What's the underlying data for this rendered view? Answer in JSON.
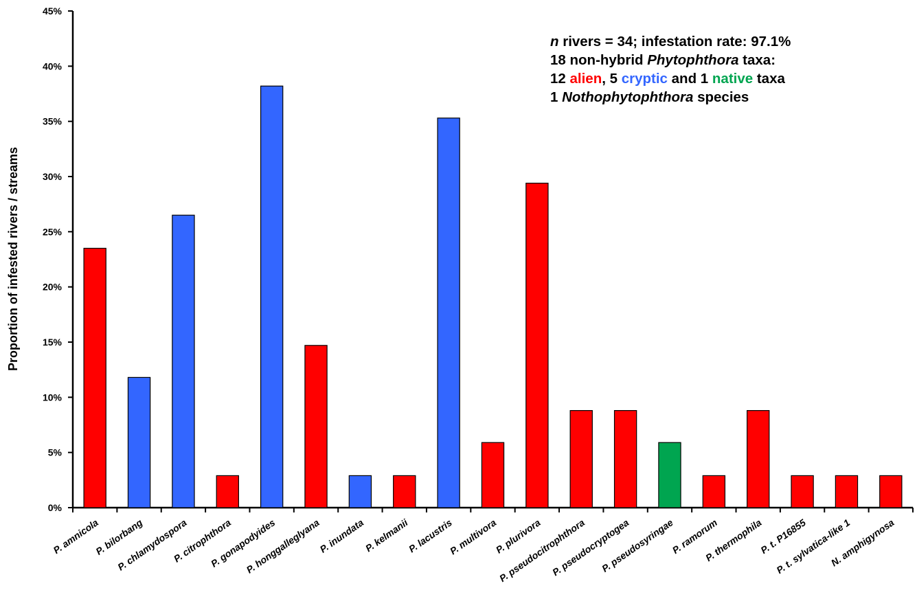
{
  "chart_data": {
    "type": "bar",
    "ylabel": "Proportion of  infested rivers / streams",
    "ylim": [
      0,
      45
    ],
    "y_ticks": [
      "0%",
      "5%",
      "10%",
      "15%",
      "20%",
      "25%",
      "30%",
      "35%",
      "40%",
      "45%"
    ],
    "y_tick_values": [
      0,
      5,
      10,
      15,
      20,
      25,
      30,
      35,
      40,
      45
    ],
    "grid": false,
    "categories": [
      "P. amnicola",
      "P. bilorbang",
      "P. chlamydospora",
      "P. citrophthora",
      "P. gonapodyides",
      "P. honggalleglyana",
      "P. inundata",
      "P. kelmanii",
      "P. lacustris",
      "P. multivora",
      "P. plurivora",
      "P. pseudocitrophthora",
      "P. pseudocryptogea",
      "P. pseudosyringae",
      "P. ramorum",
      "P. thermophila",
      "P. t. P16855",
      "P. t. sylvatica-like 1",
      "N. amphigynosa"
    ],
    "values": [
      23.5,
      11.8,
      26.5,
      2.9,
      38.2,
      14.7,
      2.9,
      2.9,
      35.3,
      5.9,
      29.4,
      8.8,
      8.8,
      5.9,
      2.9,
      8.8,
      2.9,
      2.9,
      2.9
    ],
    "status": [
      "alien",
      "cryptic",
      "cryptic",
      "alien",
      "cryptic",
      "alien",
      "cryptic",
      "alien",
      "cryptic",
      "alien",
      "alien",
      "alien",
      "alien",
      "native",
      "alien",
      "alien",
      "alien",
      "alien",
      "alien"
    ],
    "colors": {
      "alien": "#ff0000",
      "cryptic": "#3366ff",
      "native": "#00a550"
    }
  },
  "annotation": {
    "line1": {
      "n": "n",
      "rest": " rivers = 34; infestation rate: 97.1%"
    },
    "line2": {
      "pre": "18 non-hybrid ",
      "genus": "Phytophthora",
      "post": " taxa:"
    },
    "line3": {
      "alien_count": "12 ",
      "alien": "alien",
      "sep1": ", 5 ",
      "cryptic": "cryptic",
      "sep2": " and 1 ",
      "native": "native",
      "post": " taxa"
    },
    "line4": {
      "pre": "1 ",
      "genus": "Nothophytophthora",
      "post": " species"
    }
  }
}
